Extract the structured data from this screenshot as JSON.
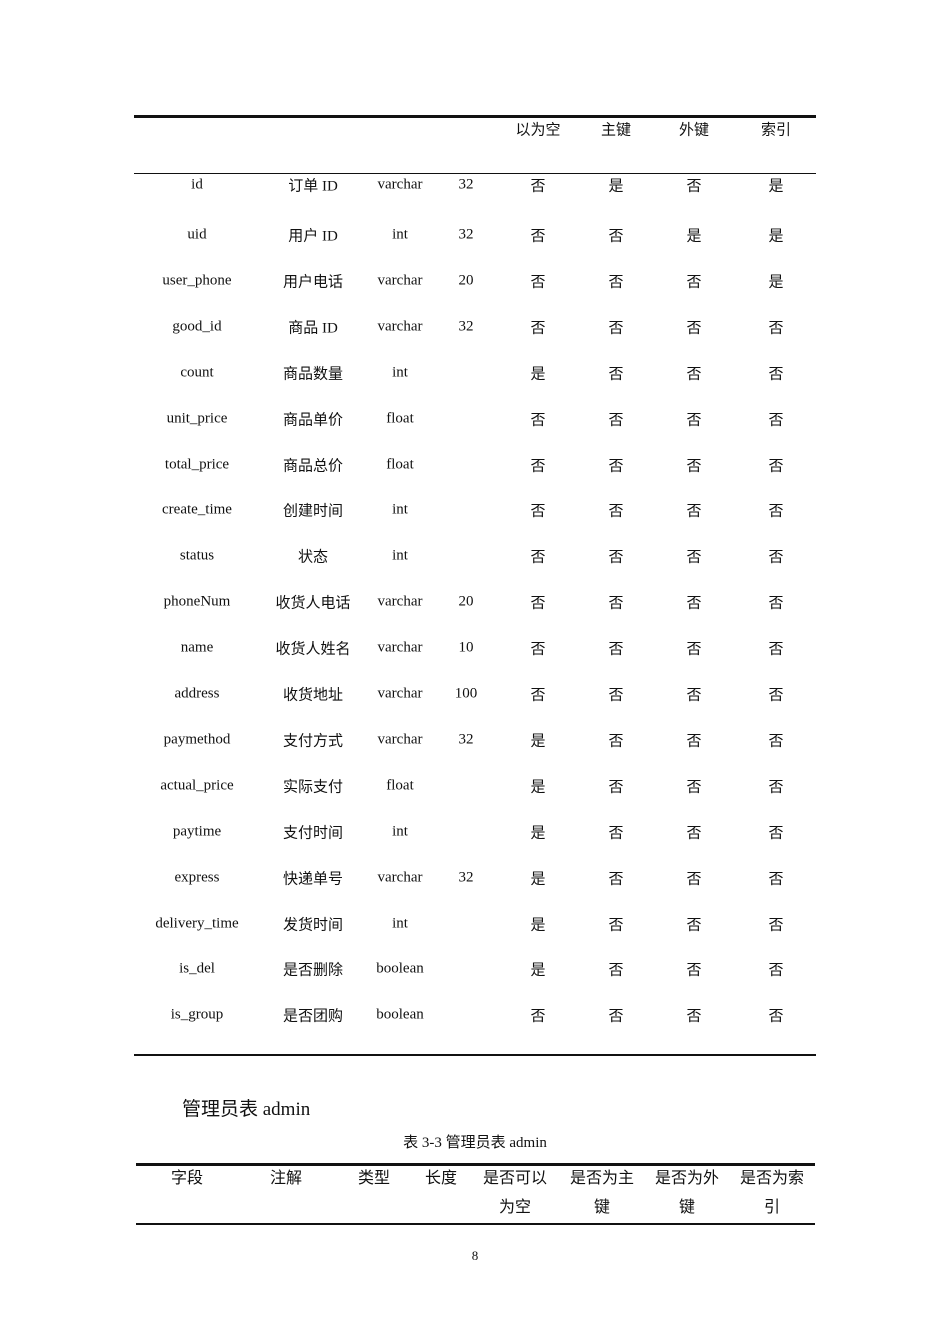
{
  "table1": {
    "headers": [
      "",
      "",
      "",
      "",
      "以为空",
      "主键",
      "外键",
      "索引"
    ],
    "rows": [
      [
        "id",
        "订单 ID",
        "varchar",
        "32",
        "否",
        "是",
        "否",
        "是"
      ],
      [
        "uid",
        "用户 ID",
        "int",
        "32",
        "否",
        "否",
        "是",
        "是"
      ],
      [
        "user_phone",
        "用户电话",
        "varchar",
        "20",
        "否",
        "否",
        "否",
        "是"
      ],
      [
        "good_id",
        "商品 ID",
        "varchar",
        "32",
        "否",
        "否",
        "否",
        "否"
      ],
      [
        "count",
        "商品数量",
        "int",
        "",
        "是",
        "否",
        "否",
        "否"
      ],
      [
        "unit_price",
        "商品单价",
        "float",
        "",
        "否",
        "否",
        "否",
        "否"
      ],
      [
        "total_price",
        "商品总价",
        "float",
        "",
        "否",
        "否",
        "否",
        "否"
      ],
      [
        "create_time",
        "创建时间",
        "int",
        "",
        "否",
        "否",
        "否",
        "否"
      ],
      [
        "status",
        "状态",
        "int",
        "",
        "否",
        "否",
        "否",
        "否"
      ],
      [
        "phoneNum",
        "收货人电话",
        "varchar",
        "20",
        "否",
        "否",
        "否",
        "否"
      ],
      [
        "name",
        "收货人姓名",
        "varchar",
        "10",
        "否",
        "否",
        "否",
        "否"
      ],
      [
        "address",
        "收货地址",
        "varchar",
        "100",
        "否",
        "否",
        "否",
        "否"
      ],
      [
        "paymethod",
        "支付方式",
        "varchar",
        "32",
        "是",
        "否",
        "否",
        "否"
      ],
      [
        "actual_price",
        "实际支付",
        "float",
        "",
        "是",
        "否",
        "否",
        "否"
      ],
      [
        "paytime",
        "支付时间",
        "int",
        "",
        "是",
        "否",
        "否",
        "否"
      ],
      [
        "express",
        "快递单号",
        "varchar",
        "32",
        "是",
        "否",
        "否",
        "否"
      ],
      [
        "delivery_time",
        "发货时间",
        "int",
        "",
        "是",
        "否",
        "否",
        "否"
      ],
      [
        "is_del",
        "是否删除",
        "boolean",
        "",
        "是",
        "否",
        "否",
        "否"
      ],
      [
        "is_group",
        "是否团购",
        "boolean",
        "",
        "否",
        "否",
        "否",
        "否"
      ]
    ]
  },
  "section_heading": "管理员表 admin",
  "caption": "表 3-3  管理员表 admin",
  "table2": {
    "headers": [
      [
        "字段"
      ],
      [
        "注解"
      ],
      [
        "类型"
      ],
      [
        "长度"
      ],
      [
        "是否可以",
        "为空"
      ],
      [
        "是否为主",
        "键"
      ],
      [
        "是否为外",
        "键"
      ],
      [
        "是否为索",
        "引"
      ]
    ]
  },
  "page_number": "8"
}
